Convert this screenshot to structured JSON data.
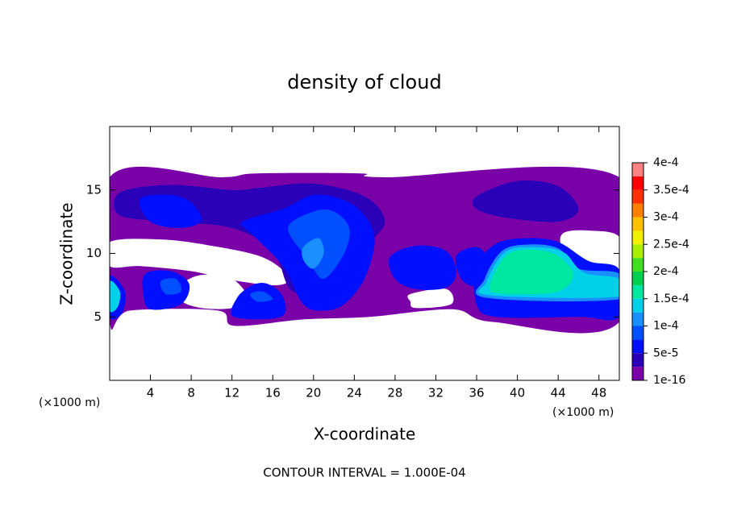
{
  "chart_data": {
    "type": "contour",
    "title": "density of cloud",
    "x_label": "X-coordinate",
    "y_label": "Z-coordinate",
    "x_unit": "(×1000 m)",
    "x_unit_right": "(×1000 m)",
    "footnote": "CONTOUR INTERVAL = 1.000E-04",
    "xlim": [
      0,
      50
    ],
    "ylim": [
      0,
      20
    ],
    "xticks": [
      4,
      8,
      12,
      16,
      20,
      24,
      28,
      32,
      36,
      40,
      44,
      48
    ],
    "yticks": [
      5,
      10,
      15
    ],
    "colorbar": {
      "ticks": [
        {
          "value": 1e-16,
          "label": "1e-16"
        },
        {
          "value": 5e-05,
          "label": "5e-5"
        },
        {
          "value": 0.0001,
          "label": "1e-4"
        },
        {
          "value": 0.00015,
          "label": "1.5e-4"
        },
        {
          "value": 0.0002,
          "label": "2e-4"
        },
        {
          "value": 0.00025,
          "label": "2.5e-4"
        },
        {
          "value": 0.0003,
          "label": "3e-4"
        },
        {
          "value": 0.00035,
          "label": "3.5e-4"
        },
        {
          "value": 0.0004,
          "label": "4e-4"
        }
      ],
      "colors": [
        "#7a00a8",
        "#2a00b8",
        "#0010ff",
        "#0050ff",
        "#1a90ff",
        "#00d0e8",
        "#00e8a0",
        "#00d050",
        "#40e020",
        "#a8f000",
        "#f0f000",
        "#ffc000",
        "#ff8000",
        "#ff3000",
        "#ff0000",
        "#ff8080"
      ]
    },
    "blobs": [
      {
        "level": 1e-05,
        "x": [
          0,
          11,
          14.4,
          24.6,
          27,
          50,
          50,
          37.6,
          33.6,
          25.5,
          19,
          12.2,
          10.6,
          2,
          0
        ],
        "z": [
          16,
          16,
          16.3,
          16.3,
          16,
          16,
          4.6,
          4.6,
          5.6,
          5.0,
          4.8,
          4.3,
          5.5,
          5.5,
          4.6
        ]
      },
      {
        "level": null,
        "x": [
          0,
          5,
          10,
          15,
          17.5,
          16.5,
          12,
          8,
          3,
          0
        ],
        "z": [
          10.9,
          11.1,
          10.6,
          9.7,
          8.2,
          7.5,
          7.9,
          8.6,
          9.0,
          9.0
        ]
      },
      {
        "level": null,
        "x": [
          7,
          9,
          12,
          13.5,
          12,
          9,
          7
        ],
        "z": [
          7.5,
          8.3,
          8.0,
          6.5,
          5.7,
          5.7,
          6.3
        ]
      },
      {
        "level": null,
        "x": [
          44.5,
          47,
          50,
          50,
          47,
          44.5
        ],
        "z": [
          11.6,
          11.8,
          11.3,
          8.8,
          9.2,
          10.4
        ]
      },
      {
        "level": null,
        "x": [
          29.5,
          33,
          33.5,
          30,
          29.5
        ],
        "z": [
          6.8,
          7.2,
          6.0,
          5.7,
          6.2
        ]
      },
      {
        "level": 3e-05,
        "x": [
          1,
          6,
          12,
          15,
          20,
          25,
          27,
          25,
          22,
          18,
          16,
          12,
          6,
          1
        ],
        "z": [
          14.8,
          15.4,
          15,
          15.2,
          15.5,
          14.5,
          12.5,
          10.5,
          8,
          7,
          10.2,
          12,
          12.5,
          13
        ]
      },
      {
        "level": 3e-05,
        "x": [
          36,
          40,
          44,
          46,
          44,
          39,
          36
        ],
        "z": [
          14.5,
          15.7,
          15.3,
          13.5,
          12.5,
          12.8,
          13.5
        ]
      },
      {
        "level": 6e-05,
        "x": [
          3,
          6,
          8,
          9,
          7,
          4
        ],
        "z": [
          14.3,
          14.6,
          14,
          12.6,
          12,
          12.5
        ]
      },
      {
        "level": 6e-05,
        "x": [
          13,
          17,
          20,
          23,
          25,
          26,
          25,
          23,
          21,
          19,
          17,
          14
        ],
        "z": [
          12.5,
          13.5,
          14.6,
          14.2,
          13,
          11,
          8,
          6,
          5.5,
          6,
          9,
          11.5
        ]
      },
      {
        "level": 8e-05,
        "x": [
          17.5,
          20,
          22,
          23.5,
          23,
          21,
          19.5
        ],
        "z": [
          12,
          13.3,
          13.3,
          12,
          10,
          8,
          9.5
        ]
      },
      {
        "level": 0.00011,
        "x": [
          19,
          20.5,
          21,
          20,
          19
        ],
        "z": [
          10.5,
          11.2,
          10,
          8.8,
          9.5
        ]
      },
      {
        "level": 6e-05,
        "x": [
          27.5,
          30,
          33,
          34,
          33,
          30,
          28
        ],
        "z": [
          9.7,
          10.6,
          10.2,
          8.5,
          7.3,
          7.2,
          8
        ]
      },
      {
        "level": 5.5e-05,
        "x": [
          34,
          36,
          37,
          36,
          34.5
        ],
        "z": [
          9.8,
          10.5,
          9.5,
          7.5,
          8
        ]
      },
      {
        "level": 6e-05,
        "x": [
          0,
          1.5,
          1.2,
          0
        ],
        "z": [
          8.2,
          7,
          5.3,
          5
        ]
      },
      {
        "level": 0.00013,
        "x": [
          0,
          1,
          0.8,
          0
        ],
        "z": [
          7.8,
          7,
          5.8,
          5.5
        ]
      },
      {
        "level": 6e-05,
        "x": [
          3.5,
          6,
          7.8,
          7,
          4,
          3.3
        ],
        "z": [
          8.4,
          8.6,
          7.6,
          6,
          5.6,
          6.8
        ]
      },
      {
        "level": 9e-05,
        "x": [
          5,
          6.5,
          7,
          5.5
        ],
        "z": [
          7.8,
          8,
          7,
          6.8
        ]
      },
      {
        "level": 6e-05,
        "x": [
          12.5,
          14,
          15.5,
          17,
          16.8,
          12.2
        ],
        "z": [
          6.5,
          7.5,
          7.6,
          6.6,
          5,
          5
        ]
      },
      {
        "level": 9e-05,
        "x": [
          13.8,
          15,
          16,
          14.5
        ],
        "z": [
          6.8,
          7,
          6.4,
          6.2
        ]
      },
      {
        "level": 6e-05,
        "x": [
          36,
          38,
          41,
          44,
          47,
          50,
          50,
          46,
          38,
          36
        ],
        "z": [
          9,
          10.8,
          11.2,
          10.9,
          9.4,
          8.7,
          5,
          5,
          5,
          6
        ]
      },
      {
        "level": 0.00011,
        "x": [
          36.8,
          38.5,
          41,
          44,
          46,
          50,
          50,
          37
        ],
        "z": [
          8,
          10.2,
          10.7,
          10.4,
          8.8,
          8.4,
          6.4,
          6.5
        ]
      },
      {
        "level": 0.00014,
        "x": [
          37,
          38.8,
          41.5,
          44.5,
          46.5,
          50,
          50,
          37.3
        ],
        "z": [
          7.8,
          10.1,
          10.5,
          10.1,
          8.5,
          8.0,
          6.6,
          6.7
        ]
      },
      {
        "level": 0.00016,
        "x": [
          37.5,
          39,
          41.5,
          44,
          45.5,
          44,
          40,
          37.5
        ],
        "z": [
          8,
          9.9,
          10.3,
          9.8,
          8.3,
          7,
          6.8,
          7
        ]
      }
    ]
  }
}
